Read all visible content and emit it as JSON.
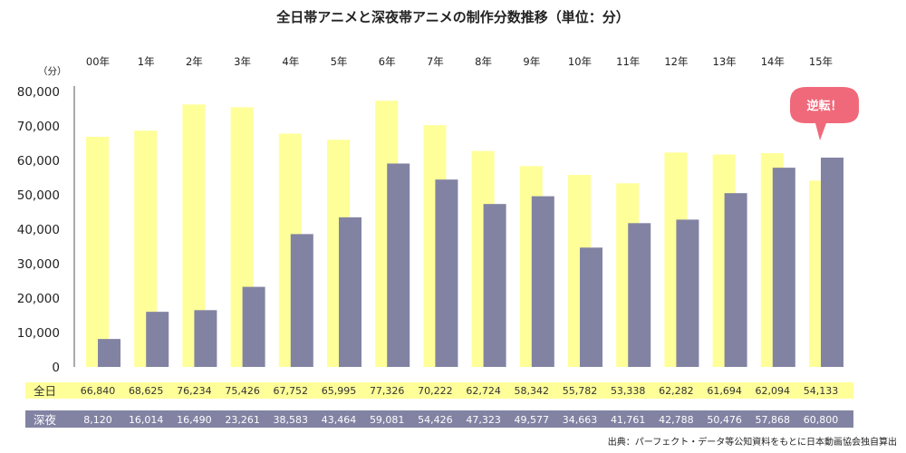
{
  "chart_data": {
    "type": "bar",
    "title": "全日帯アニメと深夜帯アニメの制作分数推移（単位：分）",
    "unit_label": "（分）",
    "categories": [
      "00年",
      "1年",
      "2年",
      "3年",
      "4年",
      "5年",
      "6年",
      "7年",
      "8年",
      "9年",
      "10年",
      "11年",
      "12年",
      "13年",
      "14年",
      "15年"
    ],
    "series": [
      {
        "name": "全日",
        "color": "#ffff99",
        "values": [
          66840,
          68625,
          76234,
          75426,
          67752,
          65995,
          77326,
          70222,
          62724,
          58342,
          55782,
          53338,
          62282,
          61694,
          62094,
          54133
        ],
        "labels": [
          "66,840",
          "68,625",
          "76,234",
          "75,426",
          "67,752",
          "65,995",
          "77,326",
          "70,222",
          "62,724",
          "58,342",
          "55,782",
          "53,338",
          "62,282",
          "61,694",
          "62,094",
          "54,133"
        ]
      },
      {
        "name": "深夜",
        "color": "#8283a3",
        "values": [
          8120,
          16014,
          16490,
          23261,
          38583,
          43464,
          59081,
          54426,
          47323,
          49577,
          34663,
          41761,
          42788,
          50476,
          57868,
          60800
        ],
        "labels": [
          "8,120",
          "16,014",
          "16,490",
          "23,261",
          "38,583",
          "43,464",
          "59,081",
          "54,426",
          "47,323",
          "49,577",
          "34,663",
          "41,761",
          "42,788",
          "50,476",
          "57,868",
          "60,800"
        ]
      }
    ],
    "yticks": [
      "0",
      "10,000",
      "20,000",
      "30,000",
      "40,000",
      "50,000",
      "60,000",
      "70,000",
      "80,000"
    ],
    "ylim": [
      0,
      80000
    ],
    "annotation": "逆転！",
    "source": "出典：パーフェクト・データ等公知資料をもとに日本動画協会独自算出"
  }
}
